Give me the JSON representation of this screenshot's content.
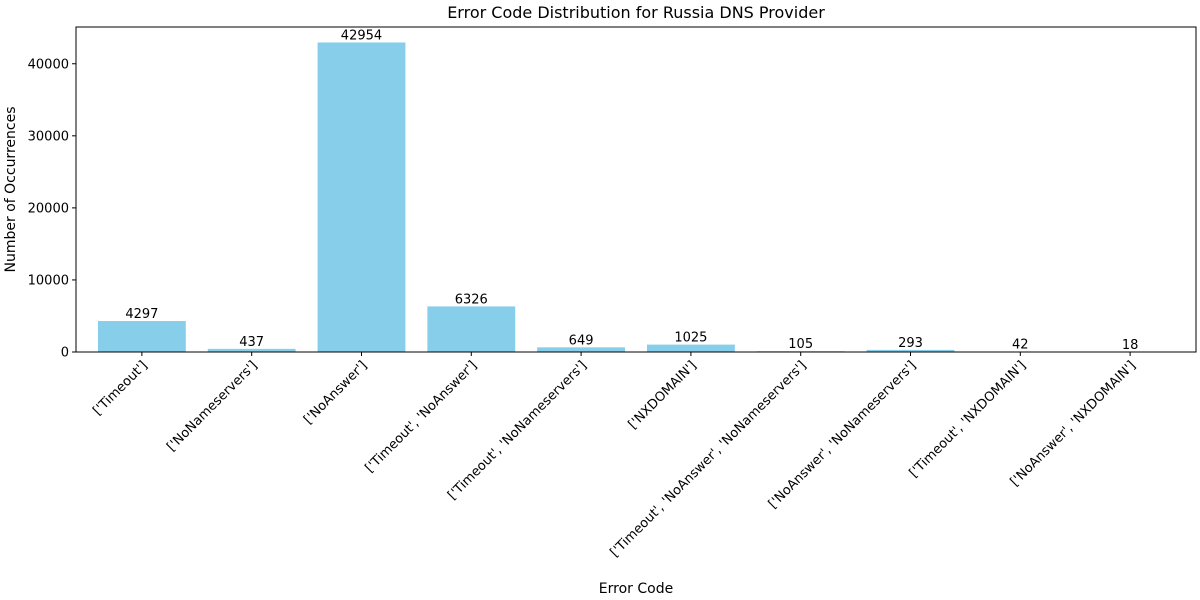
{
  "chart_data": {
    "type": "bar",
    "title": "Error Code Distribution for Russia DNS Provider",
    "xlabel": "Error Code",
    "ylabel": "Number of Occurrences",
    "categories": [
      "['Timeout']",
      "['NoNameservers']",
      "['NoAnswer']",
      "['Timeout', 'NoAnswer']",
      "['Timeout', 'NoNameservers']",
      "['NXDOMAIN']",
      "['Timeout', 'NoAnswer', 'NoNameservers']",
      "['NoAnswer', 'NoNameservers']",
      "['Timeout', 'NXDOMAIN']",
      "['NoAnswer', 'NXDOMAIN']"
    ],
    "values": [
      4297,
      437,
      42954,
      6326,
      649,
      1025,
      105,
      293,
      42,
      18
    ],
    "data_labels": [
      "4297",
      "437",
      "42954",
      "6326",
      "649",
      "1025",
      "105",
      "293",
      "42",
      "18"
    ],
    "yticks": [
      0,
      10000,
      20000,
      30000,
      40000
    ],
    "ytick_labels": [
      "0",
      "10000",
      "20000",
      "30000",
      "40000"
    ],
    "ylim": [
      0,
      45102
    ],
    "grid": false,
    "legend": "none",
    "bar_color": "#87CEEB"
  }
}
